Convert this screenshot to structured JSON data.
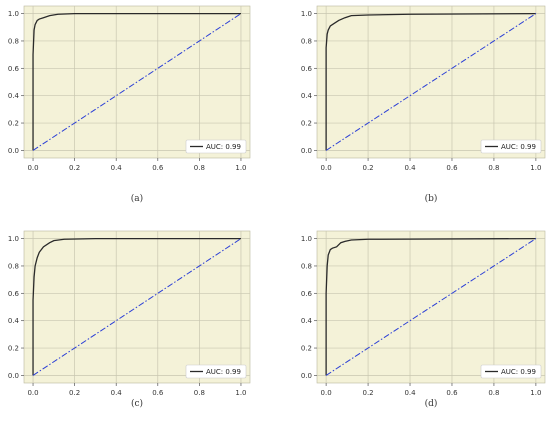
{
  "colors": {
    "plot_background": "#f4f2d8",
    "grid": "#c8c6b0",
    "roc_curve": "#2a2a2a",
    "diagonal": "#2b3fd6",
    "legend_bg": "#ffffff"
  },
  "chart_data": [
    {
      "type": "line",
      "caption": "(a)",
      "xlim": [
        0.0,
        1.0
      ],
      "ylim": [
        0.0,
        1.0
      ],
      "x_ticks": [
        "0.0",
        "0.2",
        "0.4",
        "0.6",
        "0.8",
        "1.0"
      ],
      "y_ticks": [
        "0.0",
        "0.2",
        "0.4",
        "0.6",
        "0.8",
        "1.0"
      ],
      "grid": true,
      "legend_position": "bottom-right",
      "series": [
        {
          "name": "AUC: 0.99",
          "style": "solid",
          "x": [
            0.0,
            0.0,
            0.005,
            0.01,
            0.02,
            0.03,
            0.05,
            0.08,
            0.12,
            0.2,
            1.0
          ],
          "y": [
            0.0,
            0.7,
            0.88,
            0.92,
            0.95,
            0.96,
            0.97,
            0.985,
            0.995,
            1.0,
            1.0
          ]
        },
        {
          "style": "dash-dot",
          "x": [
            0.0,
            1.0
          ],
          "y": [
            0.0,
            1.0
          ]
        }
      ]
    },
    {
      "type": "line",
      "caption": "(b)",
      "xlim": [
        0.0,
        1.0
      ],
      "ylim": [
        0.0,
        1.0
      ],
      "x_ticks": [
        "0.0",
        "0.2",
        "0.4",
        "0.6",
        "0.8",
        "1.0"
      ],
      "y_ticks": [
        "0.0",
        "0.2",
        "0.4",
        "0.6",
        "0.8",
        "1.0"
      ],
      "grid": true,
      "legend_position": "bottom-right",
      "series": [
        {
          "name": "AUC: 0.99",
          "style": "solid",
          "x": [
            0.0,
            0.0,
            0.005,
            0.01,
            0.02,
            0.04,
            0.06,
            0.09,
            0.12,
            0.2,
            0.4,
            1.0
          ],
          "y": [
            0.0,
            0.75,
            0.85,
            0.88,
            0.91,
            0.93,
            0.95,
            0.97,
            0.985,
            0.99,
            0.995,
            1.0
          ]
        },
        {
          "style": "dash-dot",
          "x": [
            0.0,
            1.0
          ],
          "y": [
            0.0,
            1.0
          ]
        }
      ]
    },
    {
      "type": "line",
      "caption": "(c)",
      "xlim": [
        0.0,
        1.0
      ],
      "ylim": [
        0.0,
        1.0
      ],
      "x_ticks": [
        "0.0",
        "0.2",
        "0.4",
        "0.6",
        "0.8",
        "1.0"
      ],
      "y_ticks": [
        "0.0",
        "0.2",
        "0.4",
        "0.6",
        "0.8",
        "1.0"
      ],
      "grid": true,
      "legend_position": "bottom-right",
      "series": [
        {
          "name": "AUC: 0.99",
          "style": "solid",
          "x": [
            0.0,
            0.0,
            0.005,
            0.01,
            0.02,
            0.03,
            0.05,
            0.08,
            0.1,
            0.15,
            0.3,
            1.0
          ],
          "y": [
            0.0,
            0.55,
            0.72,
            0.8,
            0.86,
            0.9,
            0.94,
            0.97,
            0.985,
            0.995,
            1.0,
            1.0
          ]
        },
        {
          "style": "dash-dot",
          "x": [
            0.0,
            1.0
          ],
          "y": [
            0.0,
            1.0
          ]
        }
      ]
    },
    {
      "type": "line",
      "caption": "(d)",
      "xlim": [
        0.0,
        1.0
      ],
      "ylim": [
        0.0,
        1.0
      ],
      "x_ticks": [
        "0.0",
        "0.2",
        "0.4",
        "0.6",
        "0.8",
        "1.0"
      ],
      "y_ticks": [
        "0.0",
        "0.2",
        "0.4",
        "0.6",
        "0.8",
        "1.0"
      ],
      "grid": true,
      "legend_position": "bottom-right",
      "series": [
        {
          "name": "AUC: 0.99",
          "style": "solid",
          "x": [
            0.0,
            0.0,
            0.005,
            0.01,
            0.02,
            0.03,
            0.05,
            0.07,
            0.09,
            0.12,
            0.2,
            1.0
          ],
          "y": [
            0.0,
            0.6,
            0.8,
            0.88,
            0.92,
            0.93,
            0.94,
            0.97,
            0.98,
            0.99,
            0.995,
            1.0
          ]
        },
        {
          "style": "dash-dot",
          "x": [
            0.0,
            1.0
          ],
          "y": [
            0.0,
            1.0
          ]
        }
      ]
    }
  ]
}
